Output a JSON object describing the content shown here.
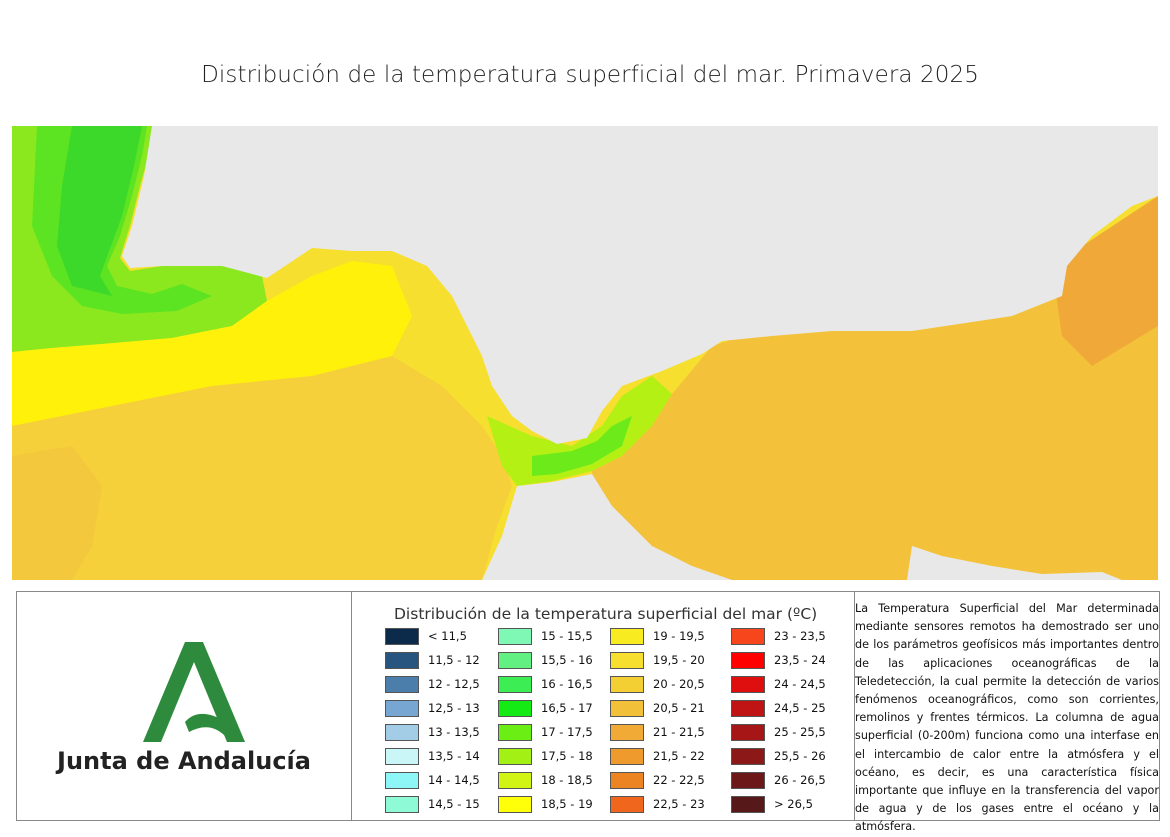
{
  "title": "Distribución de la temperatura superficial del mar. Primavera 2025",
  "organization": "Junta de Andalucía",
  "legend": {
    "title": "Distribución de la temperatura superficial del mar (ºC)",
    "items": [
      {
        "label": "< 11,5",
        "color": "#0c2a4a"
      },
      {
        "label": "11,5 - 12",
        "color": "#285580"
      },
      {
        "label": "12 - 12,5",
        "color": "#4b7eab"
      },
      {
        "label": "12,5 - 13",
        "color": "#77a6d2"
      },
      {
        "label": "13 - 13,5",
        "color": "#a3cde6"
      },
      {
        "label": "13,5 - 14",
        "color": "#cbf6f8"
      },
      {
        "label": "14 - 14,5",
        "color": "#8ef6f6"
      },
      {
        "label": "14,5 - 15",
        "color": "#8ffbd6"
      },
      {
        "label": "15 - 15,5",
        "color": "#7ff8b6"
      },
      {
        "label": "15,5 - 16",
        "color": "#62f082"
      },
      {
        "label": "16 - 16,5",
        "color": "#3cee54"
      },
      {
        "label": "16,5 - 17",
        "color": "#14ea14"
      },
      {
        "label": "17 - 17,5",
        "color": "#6aee14"
      },
      {
        "label": "17,5 - 18",
        "color": "#a2f014"
      },
      {
        "label": "18 - 18,5",
        "color": "#d2f414"
      },
      {
        "label": "18,5 - 19",
        "color": "#ffff0a"
      },
      {
        "label": "19 - 19,5",
        "color": "#f8ec20"
      },
      {
        "label": "19,5 - 20",
        "color": "#f6df2e"
      },
      {
        "label": "20 - 20,5",
        "color": "#f4cf34"
      },
      {
        "label": "20,5 - 21",
        "color": "#f3c03a"
      },
      {
        "label": "21 - 21,5",
        "color": "#f2aa36"
      },
      {
        "label": "21,5 - 22",
        "color": "#ef9a2c"
      },
      {
        "label": "22 - 22,5",
        "color": "#ec8424"
      },
      {
        "label": "22,5 - 23",
        "color": "#ef661c"
      },
      {
        "label": "23 - 23,5",
        "color": "#f8461c"
      },
      {
        "label": "23,5 - 24",
        "color": "#ff0000"
      },
      {
        "label": "24 - 24,5",
        "color": "#df0f0f"
      },
      {
        "label": "24,5 - 25",
        "color": "#c01414"
      },
      {
        "label": "25 - 25,5",
        "color": "#a61616"
      },
      {
        "label": "25,5 - 26",
        "color": "#8c1818"
      },
      {
        "label": "26 - 26,5",
        "color": "#6c1818"
      },
      {
        "label": "> 26,5",
        "color": "#561818"
      }
    ]
  },
  "description": "La Temperatura Superficial del Mar determinada mediante sensores remotos ha demostrado ser uno de los parámetros geofísicos más importantes dentro de las aplicaciones oceanográficas de la Teledetección, la cual permite la detección de varios fenómenos oceanográficos, como son corrientes, remolinos y frentes térmicos. La columna de agua superficial (0-200m) funciona como una interfase en el intercambio de calor entre la atmósfera y el océano, es decir, es una característica física importante que influye en la transferencia del vapor de agua y de los gases entre el océano y la atmósfera.",
  "colors": {
    "land": "#e8e8e8",
    "logo_green": "#2e8b3e"
  }
}
